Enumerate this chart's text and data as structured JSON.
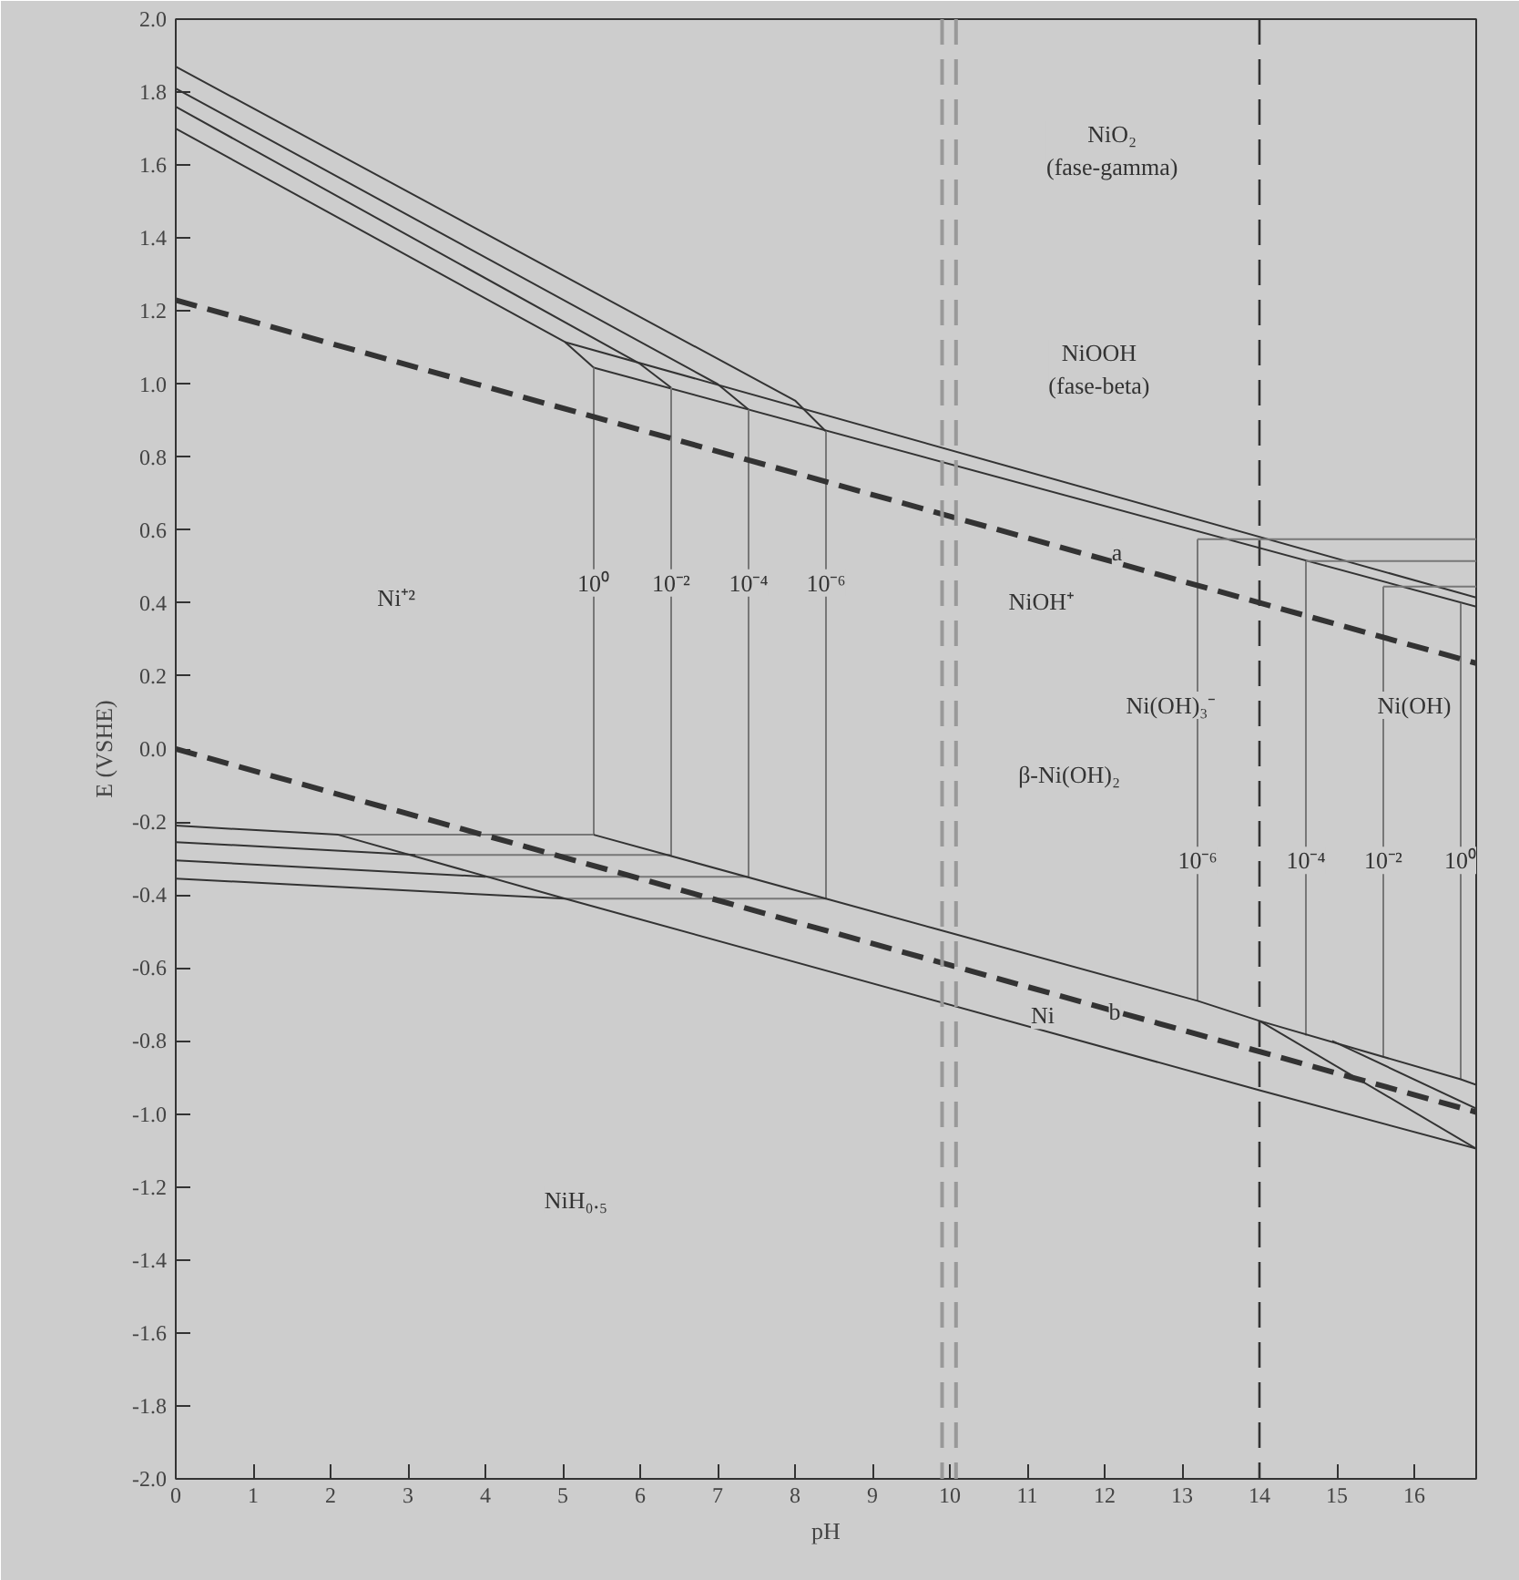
{
  "chart_data": {
    "type": "line",
    "xlabel": "pH",
    "ylabel": "E (VSHE)",
    "xlim": [
      0,
      16.8
    ],
    "ylim": [
      -2.0,
      2.0
    ],
    "xticks": [
      0,
      1,
      2,
      3,
      4,
      5,
      6,
      7,
      8,
      9,
      10,
      11,
      12,
      13,
      14,
      15,
      16
    ],
    "yticks": [
      {
        "value": -2.0,
        "label": "-2.0"
      },
      {
        "value": -1.8,
        "label": "-1.8"
      },
      {
        "value": -1.6,
        "label": "-1.6"
      },
      {
        "value": -1.4,
        "label": "-1.4"
      },
      {
        "value": -1.2,
        "label": "-1.2"
      },
      {
        "value": -1.0,
        "label": "-1.0"
      },
      {
        "value": -0.8,
        "label": "-0.8"
      },
      {
        "value": -0.6,
        "label": "-0.6"
      },
      {
        "value": -0.4,
        "label": "-0.4"
      },
      {
        "value": -0.2,
        "label": "-0.2"
      },
      {
        "value": 0.0,
        "label": "0.0"
      },
      {
        "value": 0.2,
        "label": "0.2"
      },
      {
        "value": 0.4,
        "label": "0.4"
      },
      {
        "value": 0.6,
        "label": "0.6"
      },
      {
        "value": 0.8,
        "label": "0.8"
      },
      {
        "value": 1.0,
        "label": "1.0"
      },
      {
        "value": 1.2,
        "label": "1.2"
      },
      {
        "value": 1.4,
        "label": "1.4"
      },
      {
        "value": 1.6,
        "label": "1.6"
      },
      {
        "value": 1.8,
        "label": "1.8"
      },
      {
        "value": 2.0,
        "label": "2.0"
      }
    ],
    "grid": false,
    "marker": "none",
    "series": [
      {
        "type": "line",
        "color": "#333333",
        "x": [
          0,
          5.03,
          5.4
        ],
        "values": [
          1.7,
          1.115,
          1.045
        ]
      },
      {
        "type": "line",
        "color": "#333333",
        "x": [
          0,
          6.0,
          6.4
        ],
        "values": [
          1.76,
          1.055,
          0.99
        ]
      },
      {
        "type": "line",
        "color": "#333333",
        "x": [
          0,
          7.0,
          7.4
        ],
        "values": [
          1.81,
          1.0,
          0.93
        ]
      },
      {
        "type": "line",
        "color": "#333333",
        "x": [
          0,
          8.0,
          8.4
        ],
        "values": [
          1.87,
          0.955,
          0.87
        ]
      },
      {
        "type": "line",
        "color": "#333333",
        "x": [
          5.03,
          16.8
        ],
        "values": [
          1.115,
          0.415
        ]
      },
      {
        "type": "line",
        "color": "#333333",
        "x": [
          5.4,
          16.8
        ],
        "values": [
          1.045,
          0.39
        ]
      },
      {
        "type": "line",
        "color": "#777777",
        "x": [
          5.4,
          5.4,
          2.1
        ],
        "values": [
          1.045,
          -0.235,
          -0.235
        ]
      },
      {
        "type": "line",
        "color": "#777777",
        "x": [
          6.4,
          6.4,
          3.1
        ],
        "values": [
          0.99,
          -0.29,
          -0.29
        ]
      },
      {
        "type": "line",
        "color": "#777777",
        "x": [
          7.4,
          7.4,
          4.0
        ],
        "values": [
          0.93,
          -0.35,
          -0.35
        ]
      },
      {
        "type": "line",
        "color": "#777777",
        "x": [
          8.4,
          8.4,
          5.03
        ],
        "values": [
          0.87,
          -0.41,
          -0.41
        ]
      },
      {
        "type": "line",
        "color": "#777777",
        "x": [
          13.2,
          16.8
        ],
        "values": [
          0.575,
          0.575
        ]
      },
      {
        "type": "line",
        "color": "#777777",
        "x": [
          14.6,
          16.8
        ],
        "values": [
          0.515,
          0.515
        ]
      },
      {
        "type": "line",
        "color": "#777777",
        "x": [
          15.6,
          16.8
        ],
        "values": [
          0.445,
          0.445
        ]
      },
      {
        "type": "line",
        "color": "#777777",
        "x": [
          13.2,
          13.2
        ],
        "values": [
          0.575,
          -0.69
        ]
      },
      {
        "type": "line",
        "color": "#777777",
        "x": [
          14.6,
          14.6
        ],
        "values": [
          0.515,
          -0.785
        ]
      },
      {
        "type": "line",
        "color": "#777777",
        "x": [
          15.6,
          15.6
        ],
        "values": [
          0.445,
          -0.845
        ]
      },
      {
        "type": "line",
        "color": "#777777",
        "x": [
          16.6,
          16.6
        ],
        "values": [
          0.4,
          -0.905
        ]
      },
      {
        "type": "line",
        "color": "#333333",
        "x": [
          0,
          3.1
        ],
        "values": [
          -0.255,
          -0.29
        ]
      },
      {
        "type": "line",
        "color": "#333333",
        "x": [
          0,
          4.0
        ],
        "values": [
          -0.305,
          -0.35
        ]
      },
      {
        "type": "line",
        "color": "#333333",
        "x": [
          0,
          5.03
        ],
        "values": [
          -0.355,
          -0.41
        ]
      },
      {
        "type": "line",
        "color": "#333333",
        "x": [
          0,
          2.1,
          5.03,
          14,
          16.8
        ],
        "values": [
          -0.21,
          -0.235,
          -0.41,
          -0.935,
          -1.095
        ]
      },
      {
        "type": "line",
        "color": "#333333",
        "x": [
          5.4,
          8.4,
          13.2,
          14,
          16.6,
          16.8
        ],
        "values": [
          -0.235,
          -0.41,
          -0.69,
          -0.745,
          -0.905,
          -0.92
        ]
      },
      {
        "type": "line",
        "color": "#333333",
        "x": [
          14,
          16.8
        ],
        "values": [
          -0.745,
          -1.095
        ]
      },
      {
        "type": "line",
        "color": "#333333",
        "x": [
          14.94,
          16.8
        ],
        "values": [
          -0.8,
          -0.985
        ]
      },
      {
        "type": "line",
        "color": "#333333",
        "line_style": "dashed",
        "x": [
          0,
          16.8
        ],
        "values": [
          1.23,
          0.235
        ]
      },
      {
        "type": "line",
        "color": "#333333",
        "line_style": "dashed",
        "x": [
          0,
          16.8
        ],
        "values": [
          0.0,
          -0.995
        ]
      }
    ],
    "ref_lines": [
      {
        "axis": "x",
        "value": 14,
        "color": "#333333",
        "line_style": "dashed"
      },
      {
        "axis": "x",
        "value": 9.9,
        "color": "#999999",
        "line_style": "dashed"
      },
      {
        "axis": "x",
        "value": 10.08,
        "color": "#999999",
        "line_style": "dashed"
      }
    ],
    "annotations": [
      "NiO₂\n(fase-gamma)",
      "NiOOH\n(fase-beta)",
      {
        "text": "Ni⁺²",
        "x": 2.85,
        "y": 0.415
      },
      {
        "text": "10⁰",
        "x": 5.4,
        "y": 0.455
      },
      {
        "text": "10⁻²",
        "x": 6.4,
        "y": 0.455
      },
      {
        "text": "10⁻⁴",
        "x": 7.4,
        "y": 0.455
      },
      {
        "text": "10⁻⁶",
        "x": 8.4,
        "y": 0.455
      },
      {
        "text": "a",
        "x": 12.16,
        "y": 0.54
      },
      {
        "text": "NiOH⁺",
        "x": 11.18,
        "y": 0.405
      },
      "Ni(OH)₃⁻",
      "β-Ni(OH)₂",
      {
        "text": "Ni(OH)",
        "x": 16.0,
        "y": 0.12
      },
      {
        "text": "10⁻⁶",
        "x": 13.2,
        "y": -0.305
      },
      {
        "text": "10⁻⁴",
        "x": 14.6,
        "y": -0.305
      },
      {
        "text": "10⁻²",
        "x": 15.6,
        "y": -0.305
      },
      {
        "text": "10⁰",
        "x": 16.6,
        "y": -0.305
      },
      {
        "text": "Ni",
        "x": 11.2,
        "y": -0.73
      },
      {
        "text": "b",
        "x": 12.13,
        "y": -0.72
      },
      {
        "text": "NiH₀.₅",
        "x": 5.17,
        "y": -1.235
      }
    ]
  }
}
